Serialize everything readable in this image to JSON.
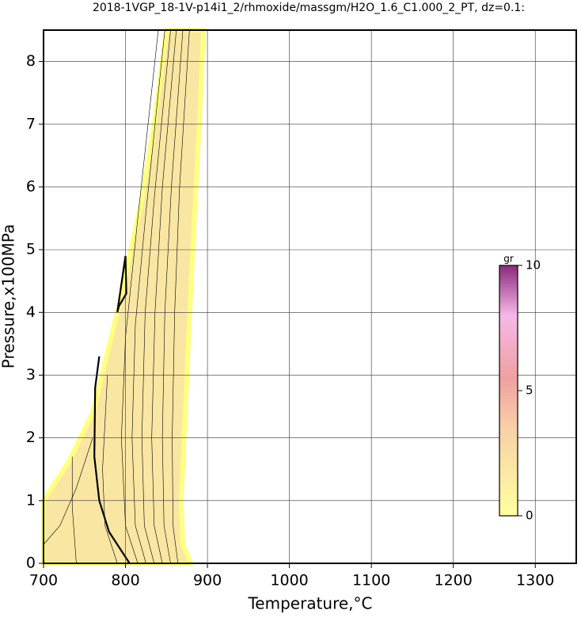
{
  "chart_data": {
    "type": "contour",
    "title": "2018-1VGP_18-1V-p14i1_2/rhmoxide/massgm/H2O_1.6_C1.000_2_PT, dz=0.1:",
    "x_label": "Temperature,°C",
    "y_label": "Pressure,x100MPa",
    "xlim": [
      700,
      1350
    ],
    "ylim": [
      0,
      8.5
    ],
    "xticks": [
      700,
      800,
      900,
      1000,
      1100,
      1200,
      1300
    ],
    "yticks": [
      0,
      1,
      2,
      3,
      4,
      5,
      6,
      7,
      8
    ],
    "grid": true,
    "region": {
      "color": "#f9e6a2",
      "x": [
        700,
        730,
        760,
        790,
        800,
        820,
        835,
        850,
        895,
        890,
        882,
        875,
        868,
        870,
        880,
        700
      ],
      "y": [
        1.0,
        1.6,
        2.4,
        4.0,
        4.6,
        5.8,
        7.0,
        8.5,
        8.5,
        7,
        5,
        3,
        1,
        0.3,
        0,
        0
      ]
    },
    "contours": [
      {
        "width": 2.2,
        "x": [
          805,
          780,
          768,
          762,
          763,
          768
        ],
        "y": [
          0,
          0.5,
          1,
          1.7,
          2.8,
          3.3
        ]
      },
      {
        "width": 2.2,
        "x": [
          790,
          800,
          801,
          792,
          790
        ],
        "y": [
          4.0,
          4.9,
          4.3,
          4.1,
          4.0
        ]
      },
      {
        "width": 0.6,
        "x": [
          790,
          775,
          772,
          778
        ],
        "y": [
          0,
          0.6,
          1.5,
          3.0
        ]
      },
      {
        "width": 0.6,
        "x": [
          815,
          800,
          795,
          800,
          815,
          840
        ],
        "y": [
          0,
          0.6,
          2,
          3.6,
          5.5,
          8.5
        ]
      },
      {
        "width": 0.6,
        "x": [
          825,
          812,
          808,
          812,
          825,
          848
        ],
        "y": [
          0,
          0.6,
          2,
          3.8,
          5.6,
          8.5
        ]
      },
      {
        "width": 0.6,
        "x": [
          835,
          823,
          820,
          824,
          835,
          855
        ],
        "y": [
          0,
          0.6,
          2,
          4,
          5.8,
          8.5
        ]
      },
      {
        "width": 0.6,
        "x": [
          845,
          835,
          832,
          836,
          845,
          862
        ],
        "y": [
          0,
          0.6,
          2,
          4,
          6,
          8.5
        ]
      },
      {
        "width": 0.6,
        "x": [
          855,
          847,
          845,
          848,
          856,
          870
        ],
        "y": [
          0,
          0.6,
          2,
          4,
          6,
          8.5
        ]
      },
      {
        "width": 0.6,
        "x": [
          864,
          858,
          857,
          860,
          866,
          878
        ],
        "y": [
          0,
          0.6,
          2,
          4,
          6,
          8.5
        ]
      },
      {
        "width": 0.6,
        "x": [
          700,
          720,
          740,
          760
        ],
        "y": [
          0.3,
          0.6,
          1.2,
          2.0
        ]
      },
      {
        "width": 0.6,
        "x": [
          740,
          735,
          735
        ],
        "y": [
          0,
          0.9,
          1.7
        ]
      }
    ],
    "colorbar": {
      "label": "gr",
      "lim": [
        0,
        10
      ],
      "ticks": [
        0,
        5,
        10
      ]
    }
  }
}
